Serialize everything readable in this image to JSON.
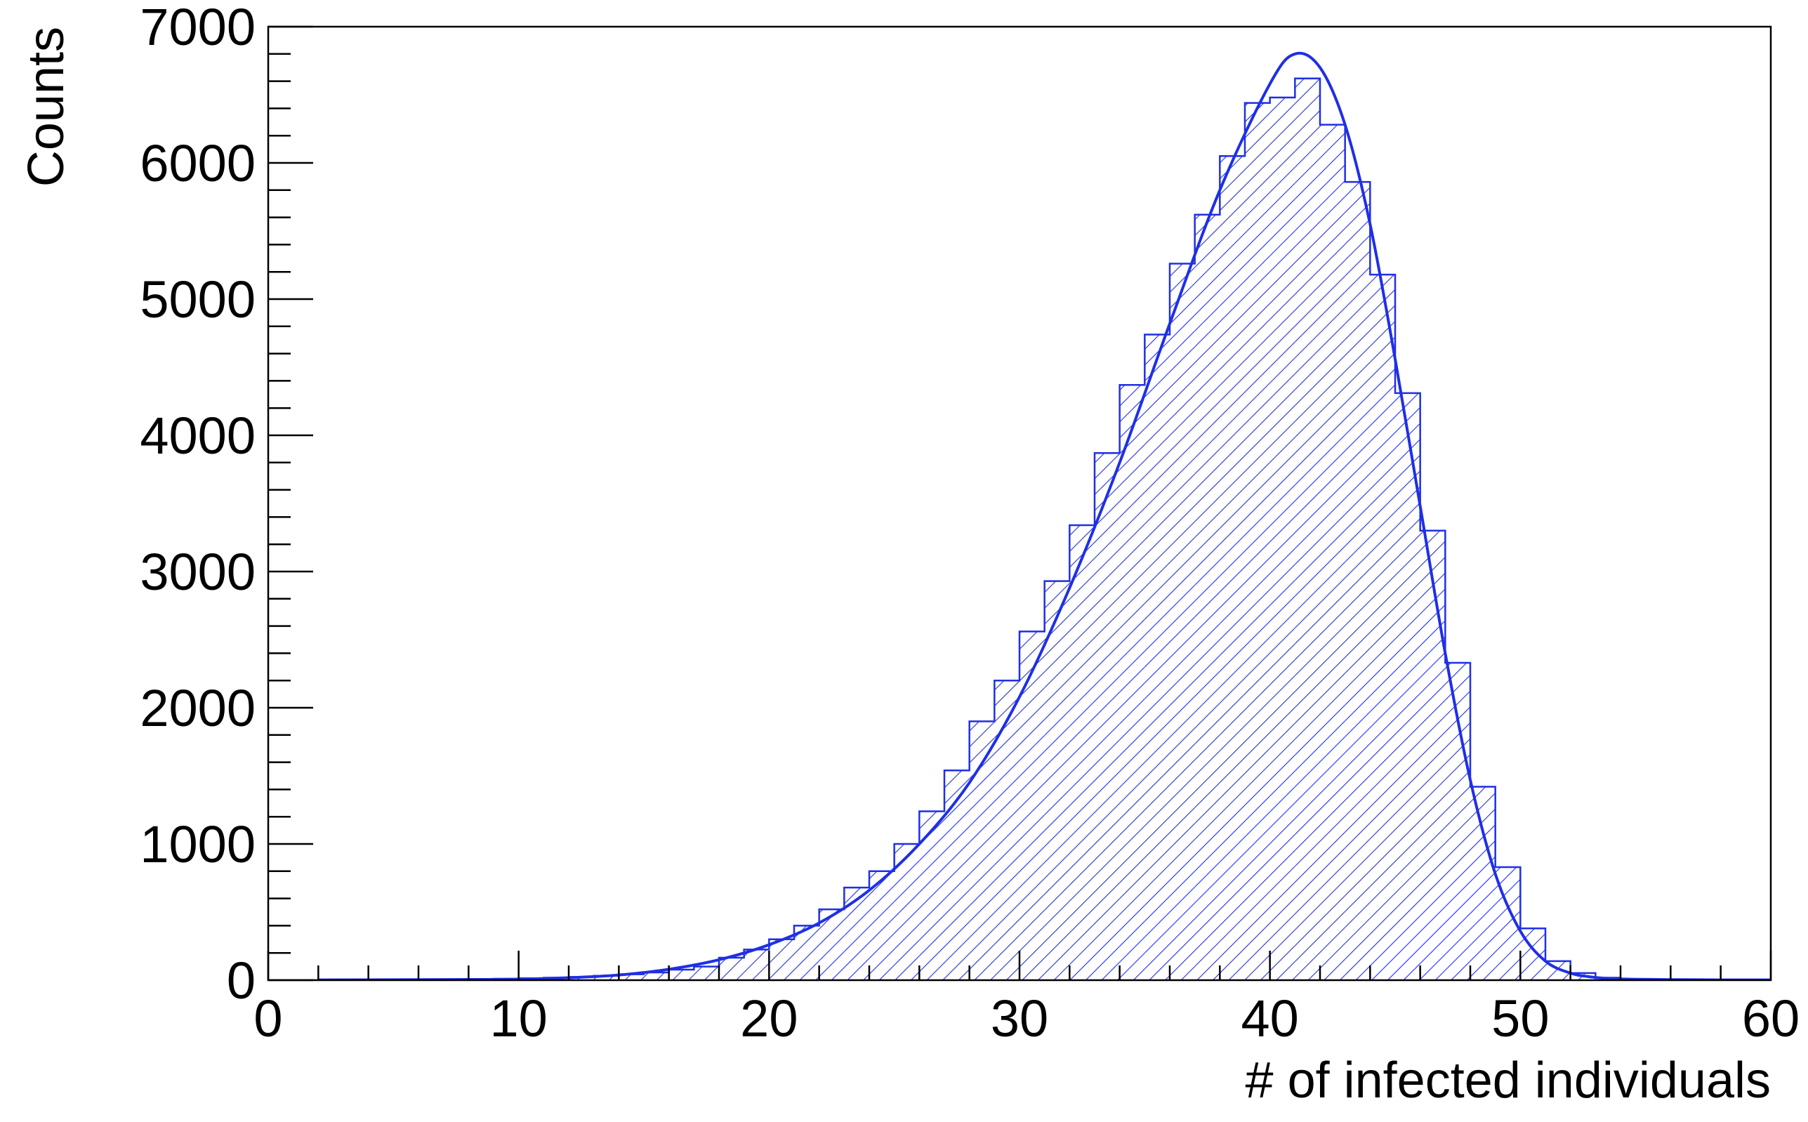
{
  "chart_data": {
    "type": "bar",
    "title": "",
    "xlabel": "# of infected individuals",
    "ylabel": "Counts",
    "xlim": [
      0,
      60
    ],
    "ylim": [
      0,
      7000
    ],
    "x_ticks": [
      "0",
      "10",
      "20",
      "30",
      "40",
      "50",
      "60"
    ],
    "y_ticks": [
      "0",
      "1000",
      "2000",
      "3000",
      "4000",
      "5000",
      "6000",
      "7000"
    ],
    "grid": false,
    "legend": "none",
    "bin_edges_start": 0,
    "bin_width": 1,
    "values": [
      0,
      0,
      0,
      2,
      3,
      4,
      5,
      6,
      8,
      10,
      14,
      18,
      24,
      32,
      43,
      57,
      77,
      100,
      165,
      225,
      300,
      400,
      520,
      680,
      800,
      1000,
      1240,
      1540,
      1900,
      2200,
      2560,
      2930,
      3340,
      3870,
      4370,
      4740,
      5260,
      5620,
      6050,
      6440,
      6480,
      6620,
      6280,
      5860,
      5180,
      4310,
      3300,
      2330,
      1420,
      830,
      380,
      140,
      52,
      18,
      6,
      2,
      1,
      0,
      0,
      0
    ],
    "fit_curve": {
      "label": "",
      "x": [
        2,
        5,
        8,
        10,
        12,
        14,
        16,
        18,
        20,
        22,
        24,
        26,
        28,
        30,
        32,
        34,
        36,
        38,
        40,
        41,
        42,
        43,
        44,
        45,
        46,
        47,
        48,
        49,
        50,
        51,
        52,
        53,
        54,
        56,
        58,
        60
      ],
      "y": [
        2,
        3,
        5,
        8,
        18,
        38,
        80,
        150,
        260,
        420,
        660,
        1000,
        1450,
        2080,
        2880,
        3800,
        4820,
        5800,
        6580,
        6800,
        6700,
        6280,
        5550,
        4560,
        3480,
        2400,
        1470,
        780,
        360,
        140,
        52,
        20,
        9,
        4,
        2,
        2
      ]
    },
    "colors": {
      "bars": "#1f2fe6",
      "curve": "#1f2fe6",
      "axes": "#000000"
    }
  }
}
